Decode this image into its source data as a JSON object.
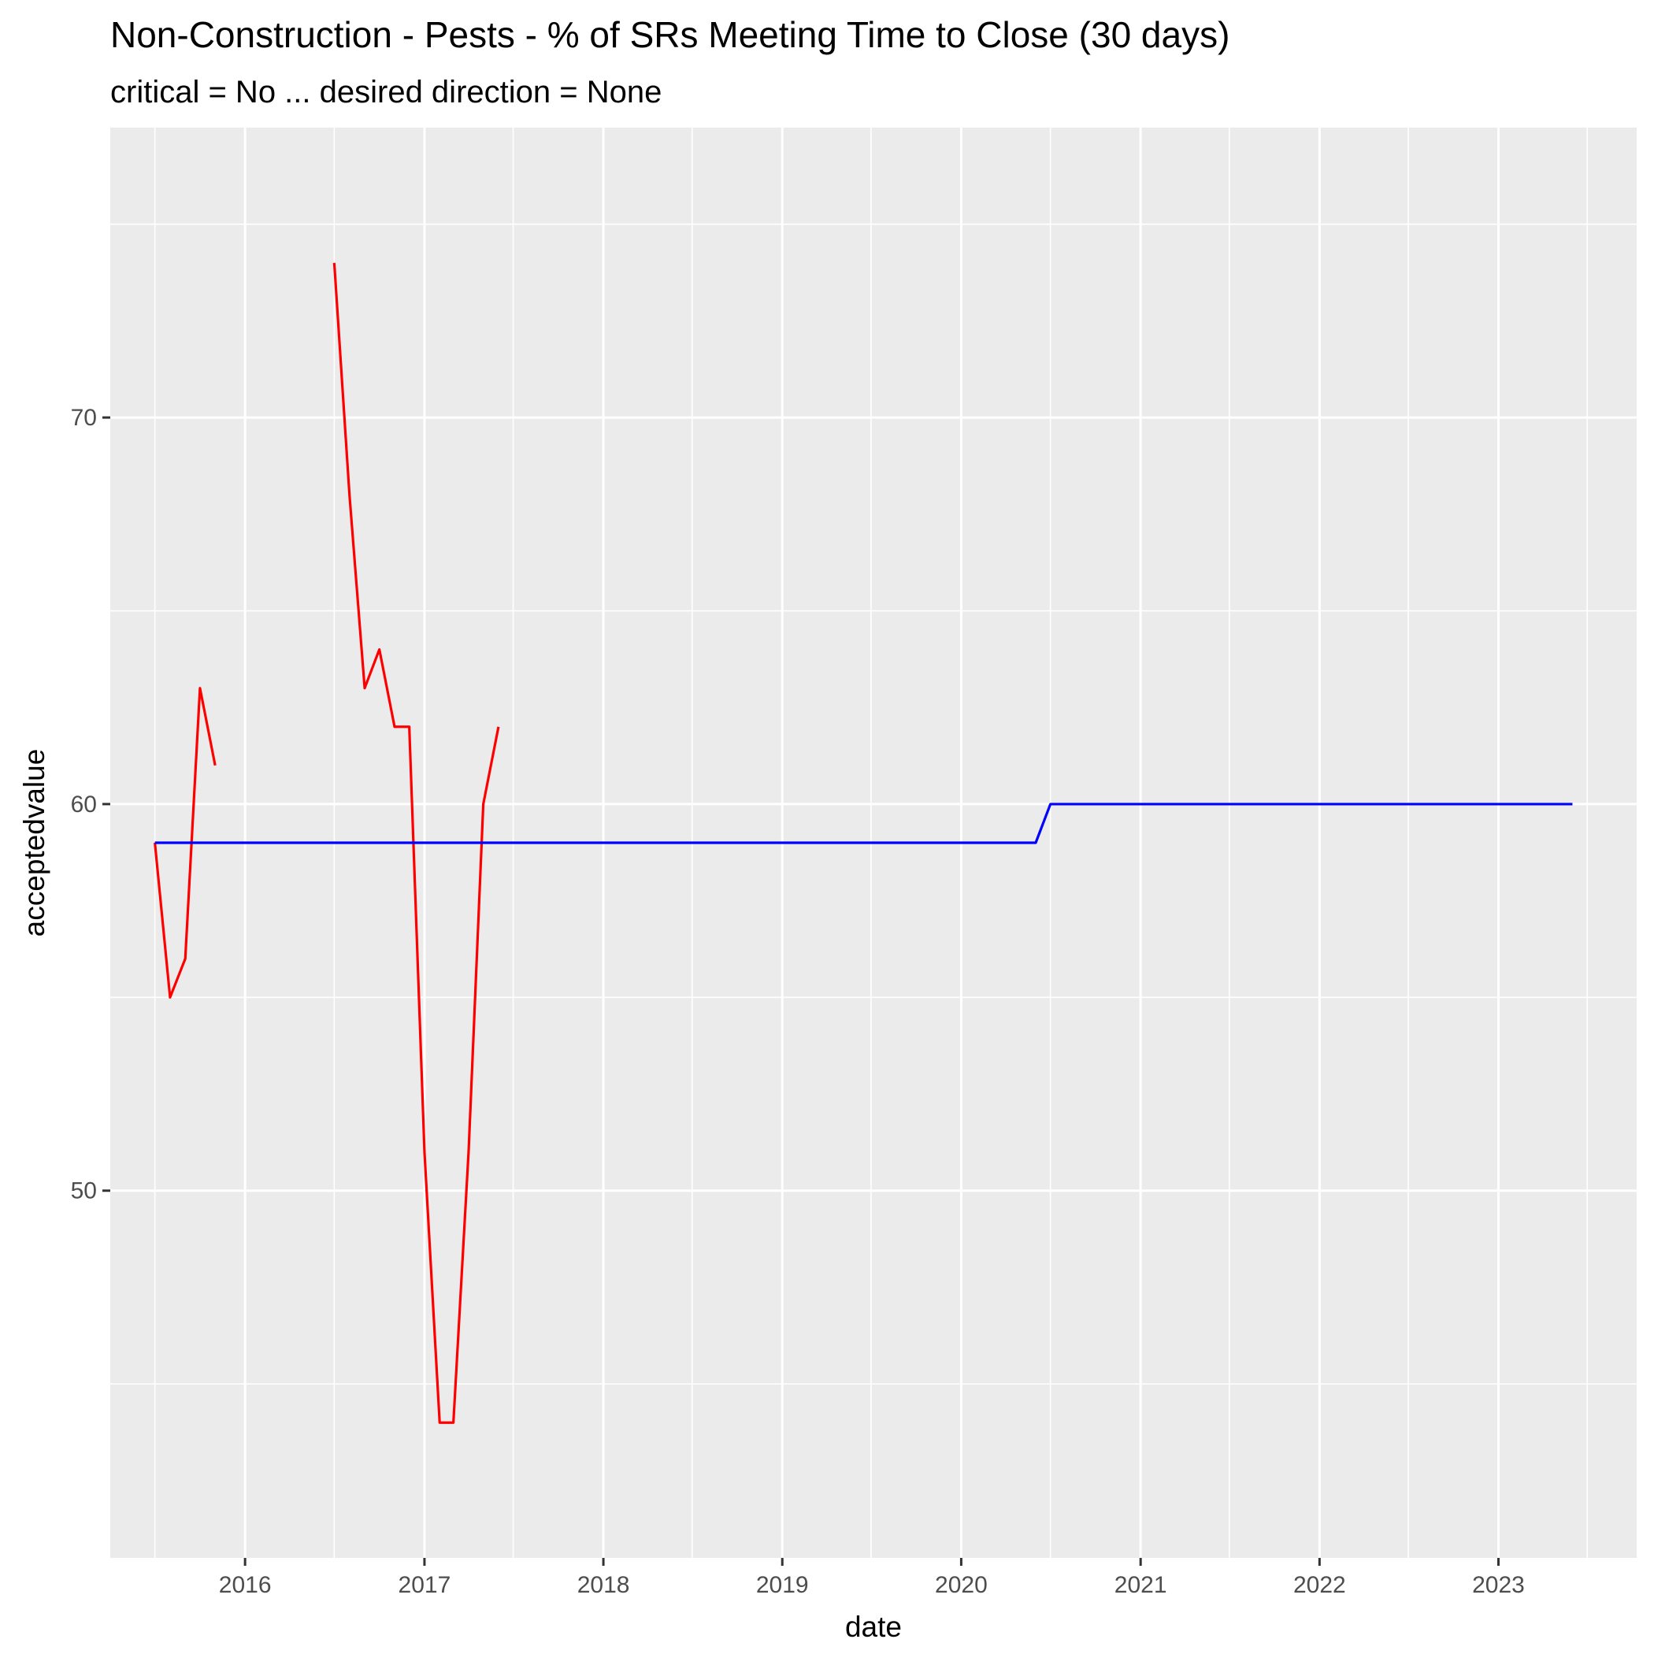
{
  "chart_data": {
    "type": "line",
    "title": "Non-Construction - Pests - % of SRs Meeting Time to Close (30 days)",
    "subtitle": "critical = No ... desired direction = None",
    "xlabel": "date",
    "ylabel": "acceptedvalue",
    "xlim": [
      "2015-04-01",
      "2023-10-10"
    ],
    "ylim": [
      40.5,
      77.5
    ],
    "x_ticks": [
      "2016-01-01",
      "2017-01-01",
      "2018-01-01",
      "2019-01-01",
      "2020-01-01",
      "2021-01-01",
      "2022-01-01",
      "2023-01-01"
    ],
    "x_tick_labels": [
      "2016",
      "2017",
      "2018",
      "2019",
      "2020",
      "2021",
      "2022",
      "2023"
    ],
    "y_ticks": [
      50,
      60,
      70
    ],
    "y_tick_labels": [
      "50",
      "60",
      "70"
    ],
    "grid": true,
    "legend": "none",
    "series": [
      {
        "color": "#ff0000",
        "segments": [
          [
            {
              "x": "2015-07-01",
              "y": 59
            },
            {
              "x": "2015-08-01",
              "y": 55
            },
            {
              "x": "2015-09-01",
              "y": 56
            },
            {
              "x": "2015-10-01",
              "y": 63
            },
            {
              "x": "2015-11-01",
              "y": 61
            }
          ],
          [
            {
              "x": "2016-07-01",
              "y": 74
            },
            {
              "x": "2016-08-01",
              "y": 68
            },
            {
              "x": "2016-09-01",
              "y": 63
            },
            {
              "x": "2016-10-01",
              "y": 64
            },
            {
              "x": "2016-11-01",
              "y": 62
            },
            {
              "x": "2016-12-01",
              "y": 62
            },
            {
              "x": "2017-01-01",
              "y": 51
            },
            {
              "x": "2017-02-01",
              "y": 44
            },
            {
              "x": "2017-03-01",
              "y": 44
            },
            {
              "x": "2017-04-01",
              "y": 51
            },
            {
              "x": "2017-05-01",
              "y": 60
            },
            {
              "x": "2017-06-01",
              "y": 62
            }
          ]
        ]
      },
      {
        "color": "#0000ff",
        "segments": [
          [
            {
              "x": "2015-07-01",
              "y": 59
            },
            {
              "x": "2020-06-01",
              "y": 59
            },
            {
              "x": "2020-07-01",
              "y": 60
            },
            {
              "x": "2023-06-01",
              "y": 60
            }
          ]
        ]
      }
    ]
  }
}
